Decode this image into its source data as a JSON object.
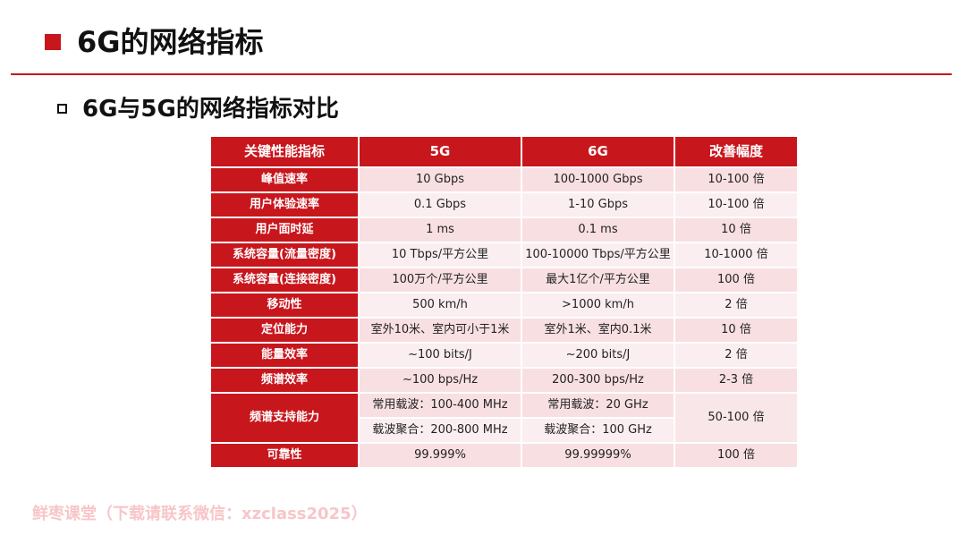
{
  "header": {
    "title": "6G的网络指标",
    "subtitle": "6G与5G的网络指标对比"
  },
  "table": {
    "columns": [
      "关键性能指标",
      "5G",
      "6G",
      "改善幅度"
    ],
    "rows": [
      {
        "metric": "峰值速率",
        "g5": "10 Gbps",
        "g6": "100-1000 Gbps",
        "improve": "10-100 倍"
      },
      {
        "metric": "用户体验速率",
        "g5": "0.1 Gbps",
        "g6": "1-10 Gbps",
        "improve": "10-100 倍"
      },
      {
        "metric": "用户面时延",
        "g5": "1 ms",
        "g6": "0.1 ms",
        "improve": "10 倍"
      },
      {
        "metric": "系统容量(流量密度)",
        "g5": "10 Tbps/平方公里",
        "g6": "100-10000 Tbps/平方公里",
        "improve": "10-1000 倍"
      },
      {
        "metric": "系统容量(连接密度)",
        "g5": "100万个/平方公里",
        "g6": "最大1亿个/平方公里",
        "improve": "100 倍"
      },
      {
        "metric": "移动性",
        "g5": "500 km/h",
        "g6": ">1000 km/h",
        "improve": "2 倍"
      },
      {
        "metric": "定位能力",
        "g5": "室外10米、室内可小于1米",
        "g6": "室外1米、室内0.1米",
        "improve": "10 倍"
      },
      {
        "metric": "能量效率",
        "g5": "~100 bits/J",
        "g6": "~200 bits/J",
        "improve": "2 倍"
      },
      {
        "metric": "频谱效率",
        "g5": "~100 bps/Hz",
        "g6": "200-300 bps/Hz",
        "improve": "2-3 倍"
      }
    ],
    "spectrum_row": {
      "metric": "频谱支持能力",
      "g5_a": "常用载波：100-400 MHz",
      "g6_a": "常用载波：20 GHz",
      "g5_b": "载波聚合：200-800 MHz",
      "g6_b": "载波聚合：100 GHz",
      "improve": "50-100 倍"
    },
    "last_row": {
      "metric": "可靠性",
      "g5": "99.999%",
      "g6": "99.99999%",
      "improve": "100 倍"
    }
  },
  "watermark": "鲜枣课堂（下载请联系微信：xzclass2025）",
  "colors": {
    "accent": "#c8161d",
    "row_light": "#fbeef0",
    "row_dark": "#f8dfe2"
  }
}
